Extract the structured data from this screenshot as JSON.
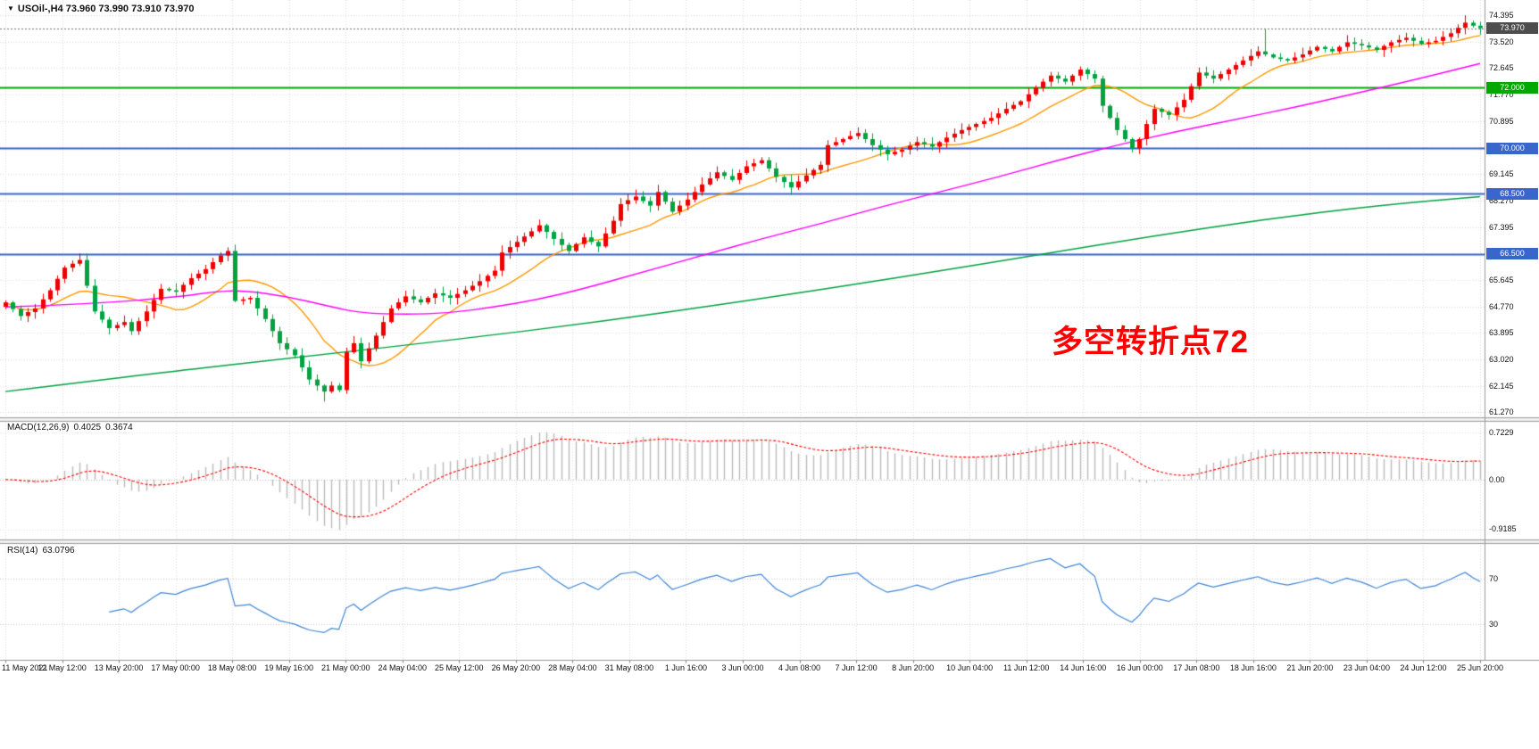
{
  "title": {
    "marker": "▼",
    "text": "USOil-,H4 73.960 73.990 73.910 73.970",
    "symbol": "USOil-",
    "timeframe": "H4",
    "open": "73.960",
    "high": "73.990",
    "low": "73.910",
    "close": "73.970"
  },
  "annotation": {
    "text": "多空转折点72",
    "color": "#FF0000"
  },
  "chart_data": {
    "type": "candlestick",
    "symbol": "USOil-",
    "timeframe": "H4",
    "ylim": [
      61.1,
      74.9
    ],
    "grid": true,
    "price_axis_labels": [
      "74.395",
      "73.520",
      "72.645",
      "71.770",
      "70.895",
      "70.020",
      "69.145",
      "68.270",
      "67.395",
      "66.520",
      "65.645",
      "64.770",
      "63.895",
      "63.020",
      "62.145",
      "61.270"
    ],
    "x_labels": [
      "11 May 2021",
      "12 May 12:00",
      "13 May 20:00",
      "17 May 00:00",
      "18 May 08:00",
      "19 May 16:00",
      "21 May 00:00",
      "24 May 04:00",
      "25 May 12:00",
      "26 May 20:00",
      "28 May 04:00",
      "31 May 08:00",
      "1 Jun 16:00",
      "3 Jun 00:00",
      "4 Jun 08:00",
      "7 Jun 12:00",
      "8 Jun 20:00",
      "10 Jun 04:00",
      "11 Jun 12:00",
      "14 Jun 16:00",
      "16 Jun 00:00",
      "17 Jun 08:00",
      "18 Jun 16:00",
      "21 Jun 20:00",
      "23 Jun 04:00",
      "24 Jun 12:00",
      "25 Jun 20:00"
    ],
    "candle_up_color": "#EE0000",
    "candle_down_color": "#00A241",
    "first_open": 64.75,
    "closes": [
      64.9,
      64.68,
      64.45,
      64.58,
      64.7,
      65.0,
      65.3,
      65.68,
      66.05,
      66.18,
      66.3,
      65.45,
      64.6,
      64.33,
      64.05,
      64.15,
      64.25,
      63.95,
      64.28,
      64.6,
      64.98,
      65.35,
      65.3,
      65.25,
      65.48,
      65.7,
      65.85,
      66.0,
      66.23,
      66.45,
      66.6,
      64.95,
      65.0,
      65.05,
      64.7,
      64.35,
      63.95,
      63.55,
      63.35,
      63.15,
      62.75,
      62.35,
      62.15,
      61.95,
      62.15,
      62.0,
      63.25,
      63.55,
      62.95,
      63.38,
      63.8,
      64.25,
      64.7,
      64.9,
      65.1,
      65.0,
      64.9,
      65.05,
      65.2,
      65.13,
      65.05,
      65.18,
      65.3,
      65.45,
      65.6,
      65.78,
      65.95,
      66.55,
      66.73,
      66.9,
      67.08,
      67.25,
      67.45,
      67.23,
      67.0,
      66.8,
      66.6,
      66.83,
      67.05,
      66.9,
      66.75,
      67.18,
      67.6,
      68.15,
      68.28,
      68.4,
      68.25,
      68.1,
      68.55,
      68.23,
      67.9,
      68.1,
      68.3,
      68.55,
      68.8,
      69.0,
      69.2,
      69.08,
      68.95,
      69.18,
      69.4,
      69.5,
      69.6,
      69.33,
      69.05,
      68.88,
      68.7,
      68.9,
      69.1,
      69.28,
      69.45,
      70.1,
      70.2,
      70.3,
      70.4,
      70.5,
      70.3,
      70.1,
      69.95,
      69.8,
      69.88,
      69.95,
      70.08,
      70.2,
      70.13,
      70.05,
      70.2,
      70.35,
      70.48,
      70.6,
      70.7,
      70.8,
      70.9,
      71.0,
      71.15,
      71.3,
      71.43,
      71.55,
      71.78,
      72.0,
      72.2,
      72.4,
      72.3,
      72.2,
      72.4,
      72.6,
      72.45,
      72.3,
      71.4,
      71.0,
      70.6,
      70.3,
      70.0,
      70.3,
      70.8,
      71.3,
      71.2,
      71.1,
      71.35,
      71.6,
      72.05,
      72.5,
      72.4,
      72.3,
      72.45,
      72.6,
      72.75,
      72.9,
      73.05,
      73.2,
      73.1,
      73.0,
      72.95,
      72.9,
      73.0,
      73.1,
      73.23,
      73.35,
      73.28,
      73.2,
      73.35,
      73.5,
      73.45,
      73.4,
      73.33,
      73.25,
      73.38,
      73.5,
      73.58,
      73.65,
      73.55,
      73.45,
      73.5,
      73.55,
      73.68,
      73.8,
      73.98,
      74.15,
      74.05,
      73.97
    ],
    "wick_overrides": {
      "10": {
        "high": 66.52
      },
      "30": {
        "high": 66.72
      },
      "43": {
        "low": 61.62
      },
      "170": {
        "high": 73.95
      },
      "197": {
        "high": 74.4
      }
    },
    "hlines": [
      {
        "label": "72.000",
        "price": 72.0,
        "color": "#00A800"
      },
      {
        "label": "70.000",
        "price": 70.0,
        "color": "#3A66CC"
      },
      {
        "label": "68.500",
        "price": 68.5,
        "color": "#3A66CC"
      },
      {
        "label": "66.500",
        "price": 66.5,
        "color": "#3A66CC"
      }
    ],
    "bid": {
      "label": "73.970",
      "price": 73.97,
      "tag_color": "#4D4D4D",
      "line_color": "#777777"
    },
    "ma_lines": [
      {
        "name": "ma-fast",
        "color": "#FF9900",
        "type": "sma",
        "period": 13
      },
      {
        "name": "ma-mid",
        "color": "#FF00FF",
        "type": "points",
        "points": [
          [
            0,
            64.75
          ],
          [
            12,
            64.85
          ],
          [
            24,
            65.1
          ],
          [
            28,
            65.25
          ],
          [
            32,
            65.3
          ],
          [
            38,
            65.1
          ],
          [
            44,
            64.75
          ],
          [
            48,
            64.55
          ],
          [
            54,
            64.5
          ],
          [
            60,
            64.55
          ],
          [
            66,
            64.75
          ],
          [
            72,
            65.0
          ],
          [
            78,
            65.35
          ],
          [
            86,
            65.9
          ],
          [
            94,
            66.45
          ],
          [
            102,
            67.0
          ],
          [
            110,
            67.5
          ],
          [
            118,
            68.05
          ],
          [
            126,
            68.55
          ],
          [
            134,
            69.05
          ],
          [
            142,
            69.6
          ],
          [
            150,
            70.1
          ],
          [
            158,
            70.55
          ],
          [
            166,
            70.95
          ],
          [
            174,
            71.35
          ],
          [
            182,
            71.8
          ],
          [
            190,
            72.25
          ],
          [
            199,
            72.8
          ]
        ]
      },
      {
        "name": "ma-slow",
        "color": "#00A241",
        "type": "points",
        "points": [
          [
            0,
            61.95
          ],
          [
            20,
            62.55
          ],
          [
            40,
            63.1
          ],
          [
            60,
            63.65
          ],
          [
            80,
            64.25
          ],
          [
            100,
            64.95
          ],
          [
            120,
            65.7
          ],
          [
            140,
            66.5
          ],
          [
            155,
            67.1
          ],
          [
            170,
            67.65
          ],
          [
            185,
            68.1
          ],
          [
            199,
            68.4
          ]
        ]
      }
    ],
    "macd": {
      "label": "MACD(12,26,9)",
      "params": [
        12,
        26,
        9
      ],
      "value_main": "0.4025",
      "value_signal": "0.3674",
      "axis_labels": [
        "0.7229",
        "0.00",
        "-0.9185"
      ],
      "histogram_color": "#BBBBBB",
      "signal_color": "#FF0000"
    },
    "rsi": {
      "label": "RSI(14)",
      "period": 14,
      "value": "63.0796",
      "axis_labels": [
        "70",
        "30"
      ],
      "levels": [
        70,
        30
      ],
      "line_color": "#3E86D6",
      "level_color": "#C8C8C8"
    }
  }
}
